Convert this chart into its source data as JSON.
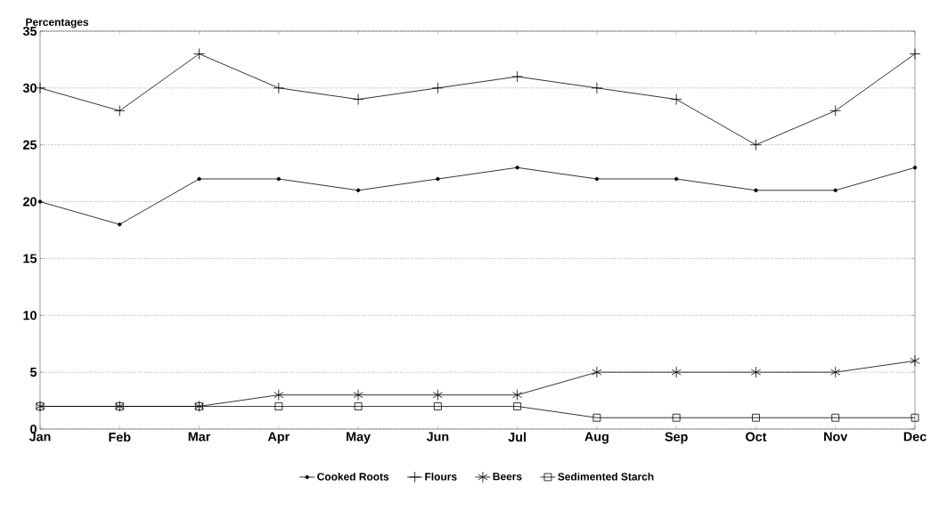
{
  "chart_data": {
    "type": "line",
    "ylabel": "Percentages",
    "categories": [
      "Jan",
      "Feb",
      "Mar",
      "Apr",
      "May",
      "Jun",
      "Jul",
      "Aug",
      "Sep",
      "Oct",
      "Nov",
      "Dec"
    ],
    "series": [
      {
        "name": "Cooked Roots",
        "color": "#000000",
        "marker": "circle",
        "values": [
          20,
          18,
          22,
          22,
          21,
          22,
          23,
          22,
          22,
          21,
          21,
          23
        ]
      },
      {
        "name": "Flours",
        "color": "#000000",
        "marker": "cross",
        "values": [
          30,
          28,
          33,
          30,
          29,
          30,
          31,
          30,
          29,
          25,
          28,
          33
        ]
      },
      {
        "name": "Beers",
        "color": "#000000",
        "marker": "cross",
        "values": [
          2,
          2,
          2,
          3,
          3,
          3,
          3,
          5,
          5,
          5,
          5,
          6
        ]
      },
      {
        "name": "Sedimented Starch",
        "color": "#000000",
        "marker": "square",
        "values": [
          2,
          2,
          2,
          2,
          2,
          2,
          2,
          1,
          1,
          1,
          1,
          1
        ]
      }
    ],
    "ylim": [
      0,
      35
    ],
    "yticks": [
      0,
      5,
      10,
      15,
      20,
      25,
      30,
      35
    ],
    "grid": "y",
    "legend": "bottom",
    "line_style": "solid"
  }
}
